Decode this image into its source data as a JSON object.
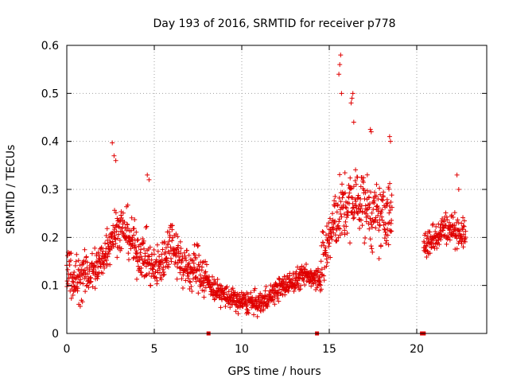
{
  "chart_data": {
    "type": "scatter",
    "title": "Day 193 of 2016, SRMTID for receiver p778",
    "xlabel": "GPS time / hours",
    "ylabel": "SRMTID / TECUs",
    "xlim": [
      0,
      24.0
    ],
    "ylim": [
      0,
      0.6
    ],
    "xticks": [
      "0",
      "5",
      "10",
      "15",
      "20"
    ],
    "xtick_values": [
      0,
      5,
      10,
      15,
      20
    ],
    "yticks": [
      "0",
      "0.1",
      "0.2",
      "0.3",
      "0.4",
      "0.5",
      "0.6"
    ],
    "ytick_values": [
      0,
      0.1,
      0.2,
      0.3,
      0.4,
      0.5,
      0.6
    ],
    "grid": true,
    "marker": "+",
    "series_color": "#e00000",
    "series": [
      {
        "name": "SRMTID",
        "segments": [
          {
            "x_start": 0.0,
            "x_end": 8.0,
            "profile": [
              [
                0.0,
                0.14
              ],
              [
                0.5,
                0.11
              ],
              [
                1.0,
                0.12
              ],
              [
                1.5,
                0.13
              ],
              [
                2.0,
                0.15
              ],
              [
                2.5,
                0.2
              ],
              [
                3.0,
                0.22
              ],
              [
                3.5,
                0.21
              ],
              [
                4.0,
                0.17
              ],
              [
                4.5,
                0.16
              ],
              [
                5.0,
                0.13
              ],
              [
                5.5,
                0.15
              ],
              [
                6.0,
                0.2
              ],
              [
                6.5,
                0.15
              ],
              [
                7.0,
                0.13
              ],
              [
                7.5,
                0.14
              ],
              [
                8.0,
                0.11
              ]
            ],
            "spread": 0.045
          },
          {
            "x_start": 8.0,
            "x_end": 14.5,
            "profile": [
              [
                8.0,
                0.11
              ],
              [
                8.5,
                0.09
              ],
              [
                9.0,
                0.08
              ],
              [
                9.5,
                0.07
              ],
              [
                10.0,
                0.065
              ],
              [
                10.5,
                0.065
              ],
              [
                11.0,
                0.06
              ],
              [
                11.5,
                0.075
              ],
              [
                12.0,
                0.09
              ],
              [
                12.5,
                0.1
              ],
              [
                13.0,
                0.11
              ],
              [
                13.5,
                0.12
              ],
              [
                14.0,
                0.12
              ],
              [
                14.5,
                0.12
              ]
            ],
            "spread": 0.022
          },
          {
            "x_start": 14.5,
            "x_end": 18.6,
            "profile": [
              [
                14.5,
                0.13
              ],
              [
                15.0,
                0.2
              ],
              [
                15.5,
                0.25
              ],
              [
                16.0,
                0.26
              ],
              [
                16.5,
                0.28
              ],
              [
                17.0,
                0.27
              ],
              [
                17.5,
                0.24
              ],
              [
                18.0,
                0.24
              ],
              [
                18.6,
                0.25
              ]
            ],
            "spread": 0.065
          },
          {
            "x_start": 20.4,
            "x_end": 22.8,
            "profile": [
              [
                20.4,
                0.18
              ],
              [
                21.0,
                0.2
              ],
              [
                21.5,
                0.22
              ],
              [
                22.0,
                0.22
              ],
              [
                22.5,
                0.21
              ],
              [
                22.8,
                0.2
              ]
            ],
            "spread": 0.03
          }
        ],
        "peaks": [
          [
            2.6,
            0.397
          ],
          [
            2.7,
            0.37
          ],
          [
            2.8,
            0.36
          ],
          [
            4.6,
            0.33
          ],
          [
            4.7,
            0.32
          ],
          [
            15.65,
            0.58
          ],
          [
            15.6,
            0.56
          ],
          [
            15.55,
            0.54
          ],
          [
            15.7,
            0.5
          ],
          [
            16.35,
            0.5
          ],
          [
            16.3,
            0.49
          ],
          [
            16.25,
            0.48
          ],
          [
            16.4,
            0.44
          ],
          [
            17.35,
            0.425
          ],
          [
            17.4,
            0.42
          ],
          [
            18.45,
            0.41
          ],
          [
            18.5,
            0.4
          ],
          [
            22.3,
            0.33
          ],
          [
            22.4,
            0.3
          ]
        ],
        "zero_points": [
          8.1,
          14.3,
          20.3,
          20.4
        ]
      }
    ]
  }
}
